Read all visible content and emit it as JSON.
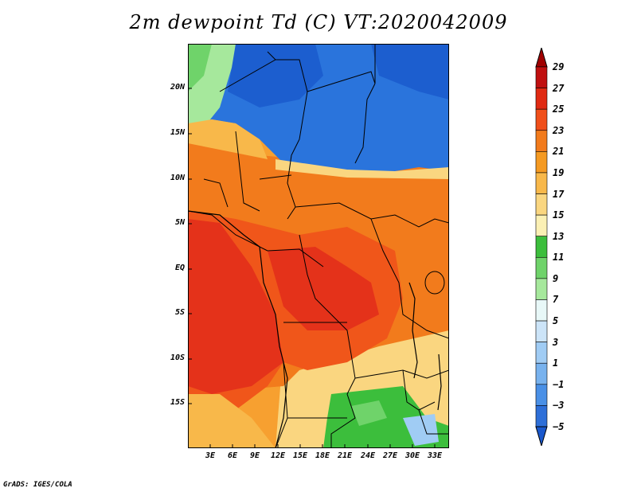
{
  "title": "2m dewpoint Td (C) VT:2020042009",
  "credit": "GrADS: IGES/COLA",
  "lat_labels": [
    "20N",
    "15N",
    "10N",
    "5N",
    "EQ",
    "5S",
    "10S",
    "15S"
  ],
  "lon_labels": [
    "3E",
    "6E",
    "9E",
    "12E",
    "15E",
    "18E",
    "21E",
    "24E",
    "27E",
    "30E",
    "33E"
  ],
  "colorbar": {
    "labels": [
      "29",
      "27",
      "25",
      "23",
      "21",
      "19",
      "17",
      "15",
      "13",
      "11",
      "9",
      "7",
      "5",
      "3",
      "1",
      "−1",
      "−3",
      "−5"
    ],
    "colors": [
      "#a00000",
      "#c01010",
      "#e02a12",
      "#f04f1a",
      "#f27b1c",
      "#f59a22",
      "#f8b84a",
      "#fad680",
      "#fbf0b4",
      "#3cbe3c",
      "#6fd36a",
      "#a6e89c",
      "#e8f8f8",
      "#cce4f8",
      "#a0ccf4",
      "#78b2ee",
      "#4a90e6",
      "#2e6fd8",
      "#1a58cc"
    ]
  },
  "colors": {
    "dry": "#2a74dc",
    "dry_dark": "#1c5ecf",
    "humid": "#f0561a",
    "very_humid": "#e4321a",
    "moderate": "#f7a030",
    "mild": "#fad680",
    "green": "#3cbe3c",
    "border": "#000000"
  }
}
